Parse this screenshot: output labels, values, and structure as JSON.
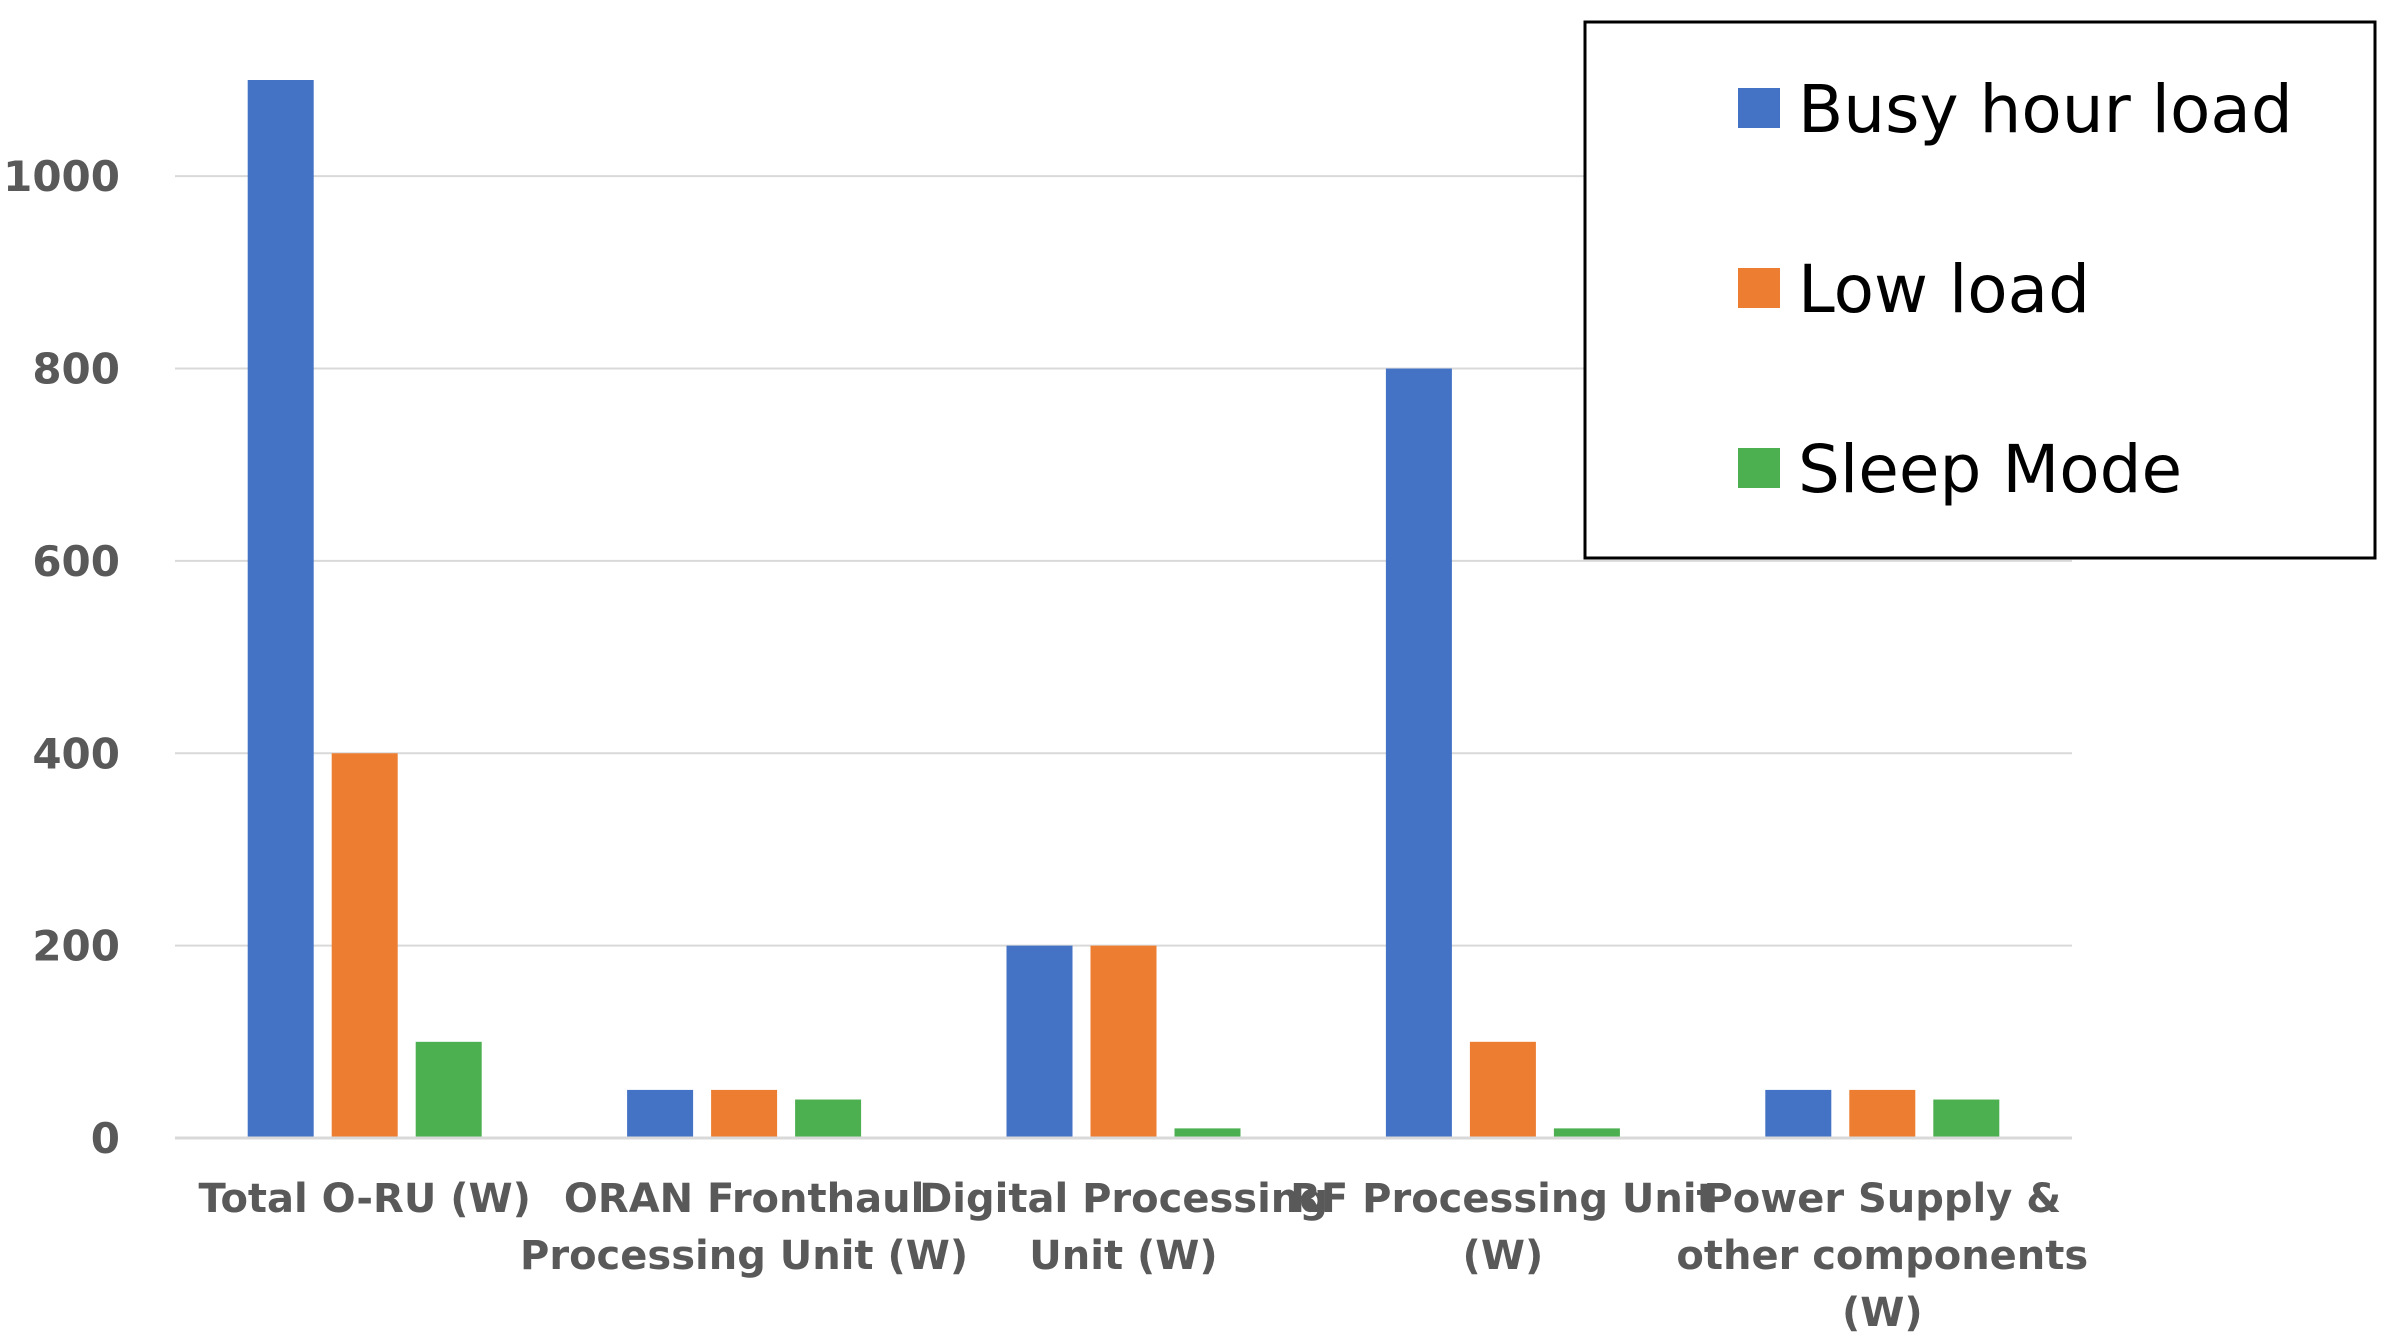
{
  "chart_data": {
    "type": "bar",
    "categories": [
      [
        "Total O-RU (W)"
      ],
      [
        "ORAN Fronthaul",
        "Processing Unit (W)"
      ],
      [
        "Digital Processing",
        "Unit (W)"
      ],
      [
        "RF Processing Unit",
        "(W)"
      ],
      [
        "Power Supply &",
        "other components",
        "(W)"
      ]
    ],
    "series": [
      {
        "name": "Busy hour load",
        "color": "#4472C4",
        "values": [
          1100,
          50,
          200,
          800,
          50
        ]
      },
      {
        "name": "Low load",
        "color": "#ED7D31",
        "values": [
          400,
          50,
          200,
          100,
          50
        ]
      },
      {
        "name": "Sleep Mode",
        "color": "#4CAF50",
        "values": [
          100,
          40,
          10,
          10,
          40
        ]
      }
    ],
    "yticks": [
      0,
      200,
      400,
      600,
      800,
      1000
    ],
    "ylim": [
      0,
      1100
    ],
    "grid": true,
    "legend_position": "top-right"
  }
}
